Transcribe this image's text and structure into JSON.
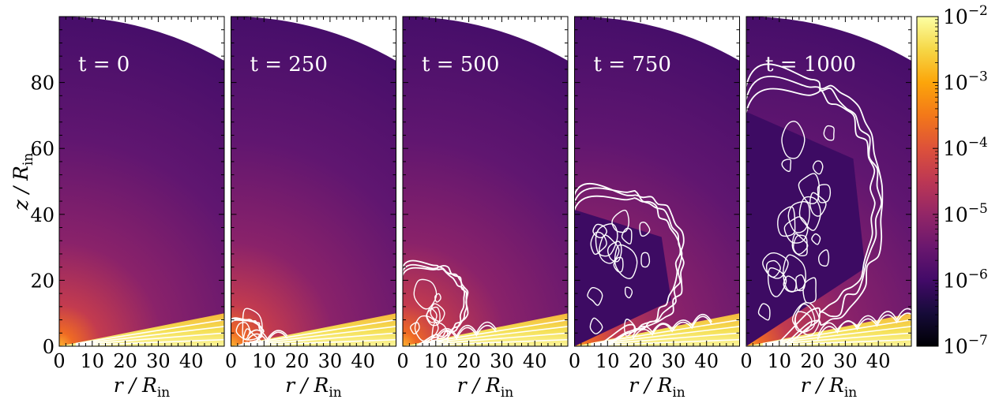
{
  "chart_data": {
    "type": "heatmap",
    "colormap": "inferno",
    "panels": [
      {
        "label": "t = 0",
        "time": 0
      },
      {
        "label": "t = 250",
        "time": 250
      },
      {
        "label": "t = 500",
        "time": 500
      },
      {
        "label": "t = 750",
        "time": 750
      },
      {
        "label": "t = 1000",
        "time": 1000
      }
    ],
    "xlabel": {
      "main": "r / R",
      "sub": "in"
    },
    "ylabel": {
      "main": "z / R",
      "sub": "in"
    },
    "xlim": [
      0,
      50
    ],
    "ylim": [
      0,
      100
    ],
    "xticks": [
      0,
      10,
      20,
      30,
      40
    ],
    "xtick_labels": [
      "0",
      "10",
      "20",
      "30",
      "40"
    ],
    "yticks": [
      0,
      20,
      40,
      60,
      80
    ],
    "ytick_labels": [
      "0",
      "20",
      "40",
      "60",
      "80"
    ],
    "outer_boundary_radius": 100,
    "disk_surface_slope": 0.2,
    "colorbar": {
      "scale": "log",
      "range": [
        1e-07,
        0.01
      ],
      "ticks": [
        {
          "value": 0.01,
          "base": "10",
          "exp": "−2"
        },
        {
          "value": 0.001,
          "base": "10",
          "exp": "−3"
        },
        {
          "value": 0.0001,
          "base": "10",
          "exp": "−4"
        },
        {
          "value": 1e-05,
          "base": "10",
          "exp": "−5"
        },
        {
          "value": 1e-06,
          "base": "10",
          "exp": "−6"
        },
        {
          "value": 1e-07,
          "base": "10",
          "exp": "−7"
        }
      ]
    },
    "bubble": [
      {
        "time": 0,
        "height": 0
      },
      {
        "time": 250,
        "height": 8
      },
      {
        "time": 500,
        "height": 24
      },
      {
        "time": 750,
        "height": 46
      },
      {
        "time": 1000,
        "height": 79
      }
    ],
    "contour_color": "#ffffff",
    "label_color": "#ffffff"
  }
}
